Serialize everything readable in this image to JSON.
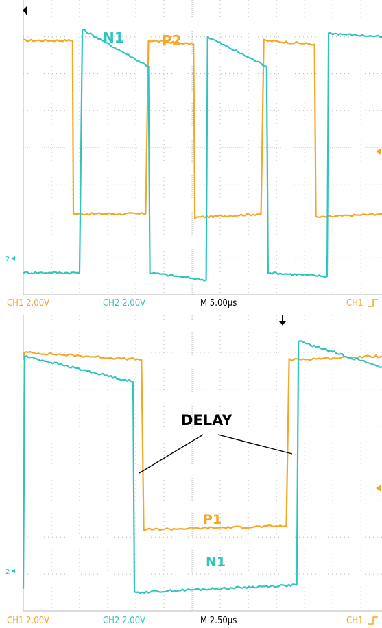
{
  "colors": {
    "ch1": "#f5a623",
    "ch2": "#2ec4c0",
    "grid": "#b9b9b9",
    "status_text": "#f5a623",
    "status_text_ch2": "#2ec4c0",
    "status_text_time": "#000000",
    "label": "#000000"
  },
  "top": {
    "labels": {
      "n1": "N1",
      "p2": "P2"
    },
    "status": {
      "ch1": "CH1 2.00V",
      "ch2": "CH2 2.00V",
      "timebase": "M 5.00µs",
      "trigger": "CH1"
    },
    "ch2_marker": "2"
  },
  "bottom": {
    "labels": {
      "delay": "DELAY",
      "p1": "P1",
      "n1": "N1"
    },
    "status": {
      "ch1": "CH1 2.00V",
      "ch2": "CH2 2.00V",
      "timebase": "M 2.50µs",
      "trigger": "CH1"
    },
    "ch2_marker": "2"
  },
  "chart_data": [
    {
      "type": "line",
      "title": "",
      "xlabel": "",
      "ylabel": "",
      "x_unit": "divisions (5.00 µs/div)",
      "grid": true,
      "series": [
        {
          "name": "P2",
          "channel": "CH1",
          "x": [
            0,
            1.75,
            1.78,
            4.35,
            4.45,
            6.05,
            6.1,
            8.45,
            8.55,
            10.35,
            10.4,
            12.7,
            12.75
          ],
          "y": [
            5.9,
            5.9,
            1.2,
            1.2,
            5.9,
            5.8,
            1.1,
            1.2,
            5.9,
            5.8,
            1.1,
            1.2,
            1.2
          ]
        },
        {
          "name": "N1",
          "channel": "CH2",
          "x": [
            0,
            2.0,
            2.1,
            4.45,
            4.5,
            6.5,
            6.55,
            8.65,
            8.7,
            10.8,
            10.85,
            12.75
          ],
          "y": [
            -0.4,
            -0.4,
            6.2,
            5.2,
            -0.4,
            -0.6,
            6.0,
            5.2,
            -0.4,
            -0.5,
            6.1,
            6.0
          ]
        }
      ]
    },
    {
      "type": "line",
      "title": "",
      "xlabel": "",
      "ylabel": "",
      "x_unit": "divisions (2.50 µs/div)",
      "grid": true,
      "annotations": [
        "DELAY",
        "P1",
        "N1"
      ],
      "series": [
        {
          "name": "P1",
          "channel": "CH1",
          "x": [
            0,
            0.03,
            4.2,
            4.28,
            9.35,
            9.45,
            12.75
          ],
          "y": [
            5.8,
            6.0,
            5.8,
            1.2,
            1.3,
            5.8,
            5.9
          ]
        },
        {
          "name": "N1",
          "channel": "CH2",
          "x": [
            0,
            0.05,
            3.9,
            3.95,
            9.72,
            9.78,
            12.75
          ],
          "y": [
            -0.4,
            5.9,
            5.2,
            -0.5,
            -0.3,
            6.3,
            5.6
          ]
        }
      ]
    }
  ]
}
